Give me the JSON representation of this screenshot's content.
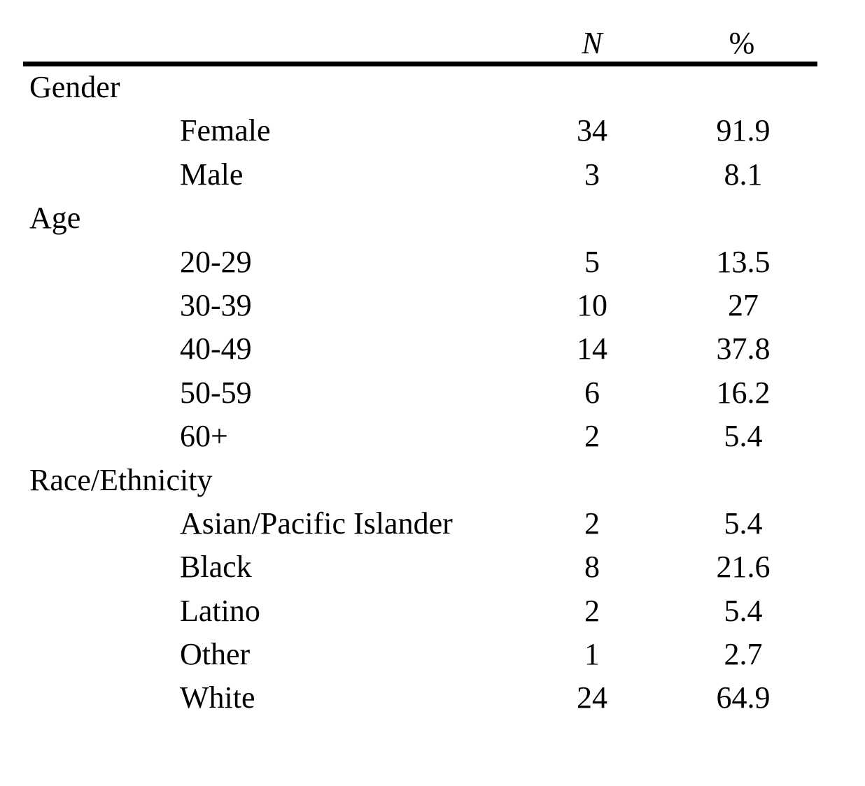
{
  "table": {
    "columns": {
      "n": "N",
      "percent": "%"
    },
    "groups": [
      {
        "label": "Gender",
        "rows": [
          {
            "label": "Female",
            "n": "34",
            "percent": "91.9"
          },
          {
            "label": "Male",
            "n": "3",
            "percent": "8.1"
          }
        ]
      },
      {
        "label": "Age",
        "rows": [
          {
            "label": "20-29",
            "n": "5",
            "percent": "13.5"
          },
          {
            "label": "30-39",
            "n": "10",
            "percent": "27"
          },
          {
            "label": "40-49",
            "n": "14",
            "percent": "37.8"
          },
          {
            "label": "50-59",
            "n": "6",
            "percent": "16.2"
          },
          {
            "label": "60+",
            "n": "2",
            "percent": "5.4"
          }
        ]
      },
      {
        "label": "Race/Ethnicity",
        "rows": [
          {
            "label": "Asian/Pacific Islander",
            "n": "2",
            "percent": "5.4"
          },
          {
            "label": "Black",
            "n": "8",
            "percent": "21.6"
          },
          {
            "label": "Latino",
            "n": "2",
            "percent": "5.4"
          },
          {
            "label": "Other",
            "n": "1",
            "percent": "2.7"
          },
          {
            "label": "White",
            "n": "24",
            "percent": "64.9"
          }
        ]
      }
    ]
  }
}
